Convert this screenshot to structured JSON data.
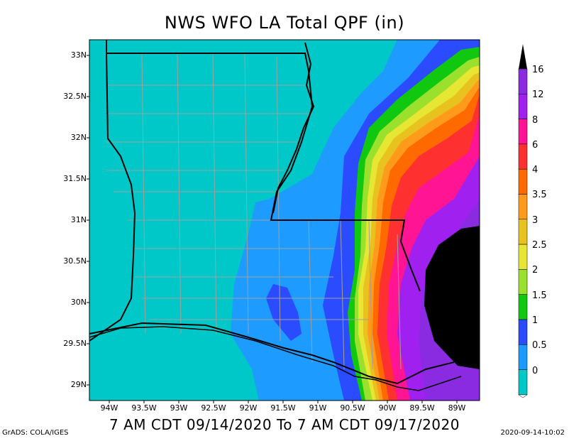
{
  "title": "NWS WFO LA Total QPF (in)",
  "valid_period": "7 AM CDT 09/14/2020 To 7 AM CDT 09/17/2020",
  "credit": "GrADS: COLA/IGES",
  "timestamp": "2020-09-14-10:02",
  "lat_labels": [
    "33N",
    "32.5N",
    "32N",
    "31.5N",
    "31N",
    "30.5N",
    "30N",
    "29.5N",
    "29N"
  ],
  "lon_labels": [
    "94W",
    "93.5W",
    "93W",
    "92.5W",
    "92W",
    "91.5W",
    "91W",
    "90.5W",
    "90W",
    "89.5W",
    "89W"
  ],
  "colorbar": {
    "labels": [
      "16",
      "12",
      "8",
      "6",
      "4",
      "3.5",
      "3",
      "2.5",
      "2",
      "1.5",
      "1",
      "0.5",
      "0"
    ],
    "colors": [
      "#8A2BE2",
      "#A020F0",
      "#FF1493",
      "#FF3030",
      "#FF6A00",
      "#FF9A1A",
      "#E8C21E",
      "#E6E633",
      "#9BE02C",
      "#11C811",
      "#2B4BFF",
      "#1E9BFF",
      "#00C8C8"
    ]
  },
  "colors": {
    "background": "#00C8C8",
    "land_border": "#000000",
    "county_lines": "#A0A0A0"
  }
}
